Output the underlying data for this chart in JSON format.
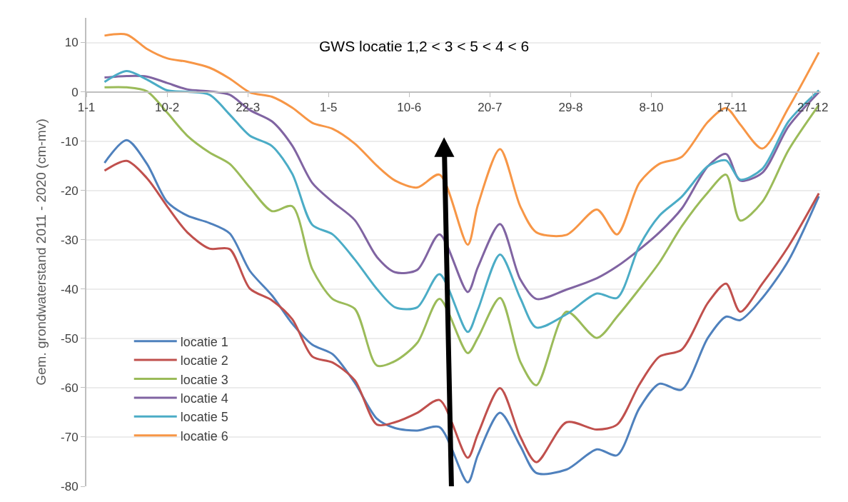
{
  "chart_data": {
    "type": "line",
    "ylabel": "Gem. grondwaterstand 2011 - 2020 (cm-mv)",
    "annotations": [
      "GWS locatie 1,2 < 3 < 5 < 4 < 6"
    ],
    "x": [
      "--01-10",
      "--01-21",
      "--01-31",
      "--02-10",
      "--02-20",
      "--03-03",
      "--03-13",
      "--03-23",
      "--04-03",
      "--04-13",
      "--04-23",
      "--05-03",
      "--05-14",
      "--05-25",
      "--06-03",
      "--06-14",
      "--06-25",
      "--07-09",
      "--07-14",
      "--07-25",
      "--08-04",
      "--08-12",
      "--08-27",
      "--09-11",
      "--09-21",
      "--10-02",
      "--10-12",
      "--10-23",
      "--11-05",
      "--11-14",
      "--11-21",
      "--12-02",
      "--12-15",
      "--12-30"
    ],
    "xlim": [
      "--01-01",
      "--12-31"
    ],
    "xticks": [
      {
        "value": "--01-01",
        "label": "1-1"
      },
      {
        "value": "--02-10",
        "label": "10-2"
      },
      {
        "value": "--03-22",
        "label": "22-3"
      },
      {
        "value": "--05-01",
        "label": "1-5"
      },
      {
        "value": "--06-10",
        "label": "10-6"
      },
      {
        "value": "--07-20",
        "label": "20-7"
      },
      {
        "value": "--08-29",
        "label": "29-8"
      },
      {
        "value": "--10-08",
        "label": "8-10"
      },
      {
        "value": "--11-17",
        "label": "17-11"
      },
      {
        "value": "--12-27",
        "label": "27-12"
      }
    ],
    "ylim": [
      -80,
      15
    ],
    "yticks": [
      -80,
      -70,
      -60,
      -50,
      -40,
      -30,
      -20,
      -10,
      0,
      10
    ],
    "grid": "y",
    "legend": "bottom left",
    "marker": "none",
    "line_style": "solid",
    "series": [
      {
        "name": "locatie 1",
        "color": "#4f81bd",
        "values": [
          -14.4,
          -9.8,
          -14.6,
          -22.3,
          -25.1,
          -26.6,
          -28.7,
          -36.3,
          -41.3,
          -47,
          -51.3,
          -53.2,
          -59,
          -66.3,
          -68.2,
          -68.7,
          -68,
          -79.2,
          -73.7,
          -65.1,
          -71.8,
          -77.3,
          -76.6,
          -72.5,
          -73.7,
          -64.2,
          -59.2,
          -60.4,
          -49.9,
          -45.6,
          -46.3,
          -41.8,
          -34.2,
          -21.2
        ]
      },
      {
        "name": "locatie 2",
        "color": "#c0504d",
        "values": [
          -16,
          -14,
          -17.5,
          -23.2,
          -28.5,
          -31.8,
          -31.9,
          -39.9,
          -42.3,
          -46.1,
          -53.7,
          -54.9,
          -58.5,
          -67.5,
          -67,
          -65.1,
          -62.5,
          -74.2,
          -69.4,
          -60.1,
          -69.9,
          -75.1,
          -67,
          -68.5,
          -67.5,
          -59.4,
          -53.7,
          -52.3,
          -42.8,
          -38.9,
          -44.6,
          -38.9,
          -31.3,
          -20.6
        ]
      },
      {
        "name": "locatie 3",
        "color": "#9bbb59",
        "values": [
          0.9,
          0.9,
          0.1,
          -4.2,
          -8.9,
          -12.3,
          -14.6,
          -19.4,
          -24.2,
          -23.2,
          -36,
          -42,
          -44,
          -55.5,
          -54.6,
          -50.9,
          -42,
          -53,
          -49.9,
          -41.8,
          -54.7,
          -59.5,
          -44.6,
          -49.9,
          -45.6,
          -40,
          -34.6,
          -27.3,
          -20.4,
          -16.8,
          -26.1,
          -22.3,
          -11.8,
          -2.7
        ]
      },
      {
        "name": "locatie 4",
        "color": "#8064a2",
        "values": [
          2.9,
          3.2,
          3.1,
          1.8,
          0.5,
          0.1,
          -0.6,
          -3.7,
          -6,
          -10.9,
          -18.5,
          -22.3,
          -26,
          -33.5,
          -36.6,
          -36.1,
          -28.9,
          -40.6,
          -35.6,
          -26.8,
          -38,
          -42,
          -40.1,
          -37.8,
          -35.4,
          -32,
          -28.5,
          -23.7,
          -15.1,
          -12.6,
          -18,
          -16.4,
          -7,
          -0.1
        ]
      },
      {
        "name": "locatie 5",
        "color": "#4bacc6",
        "values": [
          2,
          4.2,
          2.5,
          0.3,
          0,
          -0.6,
          -4.6,
          -8.9,
          -11,
          -16.6,
          -27,
          -28.9,
          -34,
          -40,
          -43.7,
          -43.7,
          -37,
          -48.7,
          -44.2,
          -33,
          -41.8,
          -47.8,
          -45.1,
          -40.9,
          -41.8,
          -31.3,
          -25.1,
          -21.3,
          -15.1,
          -13.9,
          -17.8,
          -15.6,
          -6,
          0.3
        ]
      },
      {
        "name": "locatie 6",
        "color": "#f79646",
        "values": [
          11.4,
          11.6,
          8.7,
          6.8,
          6.1,
          4.9,
          2.7,
          -0.1,
          -1,
          -3.2,
          -6.3,
          -7.5,
          -10.5,
          -15,
          -18,
          -19.4,
          -16.8,
          -31,
          -23,
          -11.6,
          -23.2,
          -28.5,
          -29,
          -23.9,
          -28.9,
          -18.5,
          -14.6,
          -13.2,
          -6.1,
          -3.3,
          -6.6,
          -11.5,
          -3.2,
          8
        ]
      }
    ]
  }
}
